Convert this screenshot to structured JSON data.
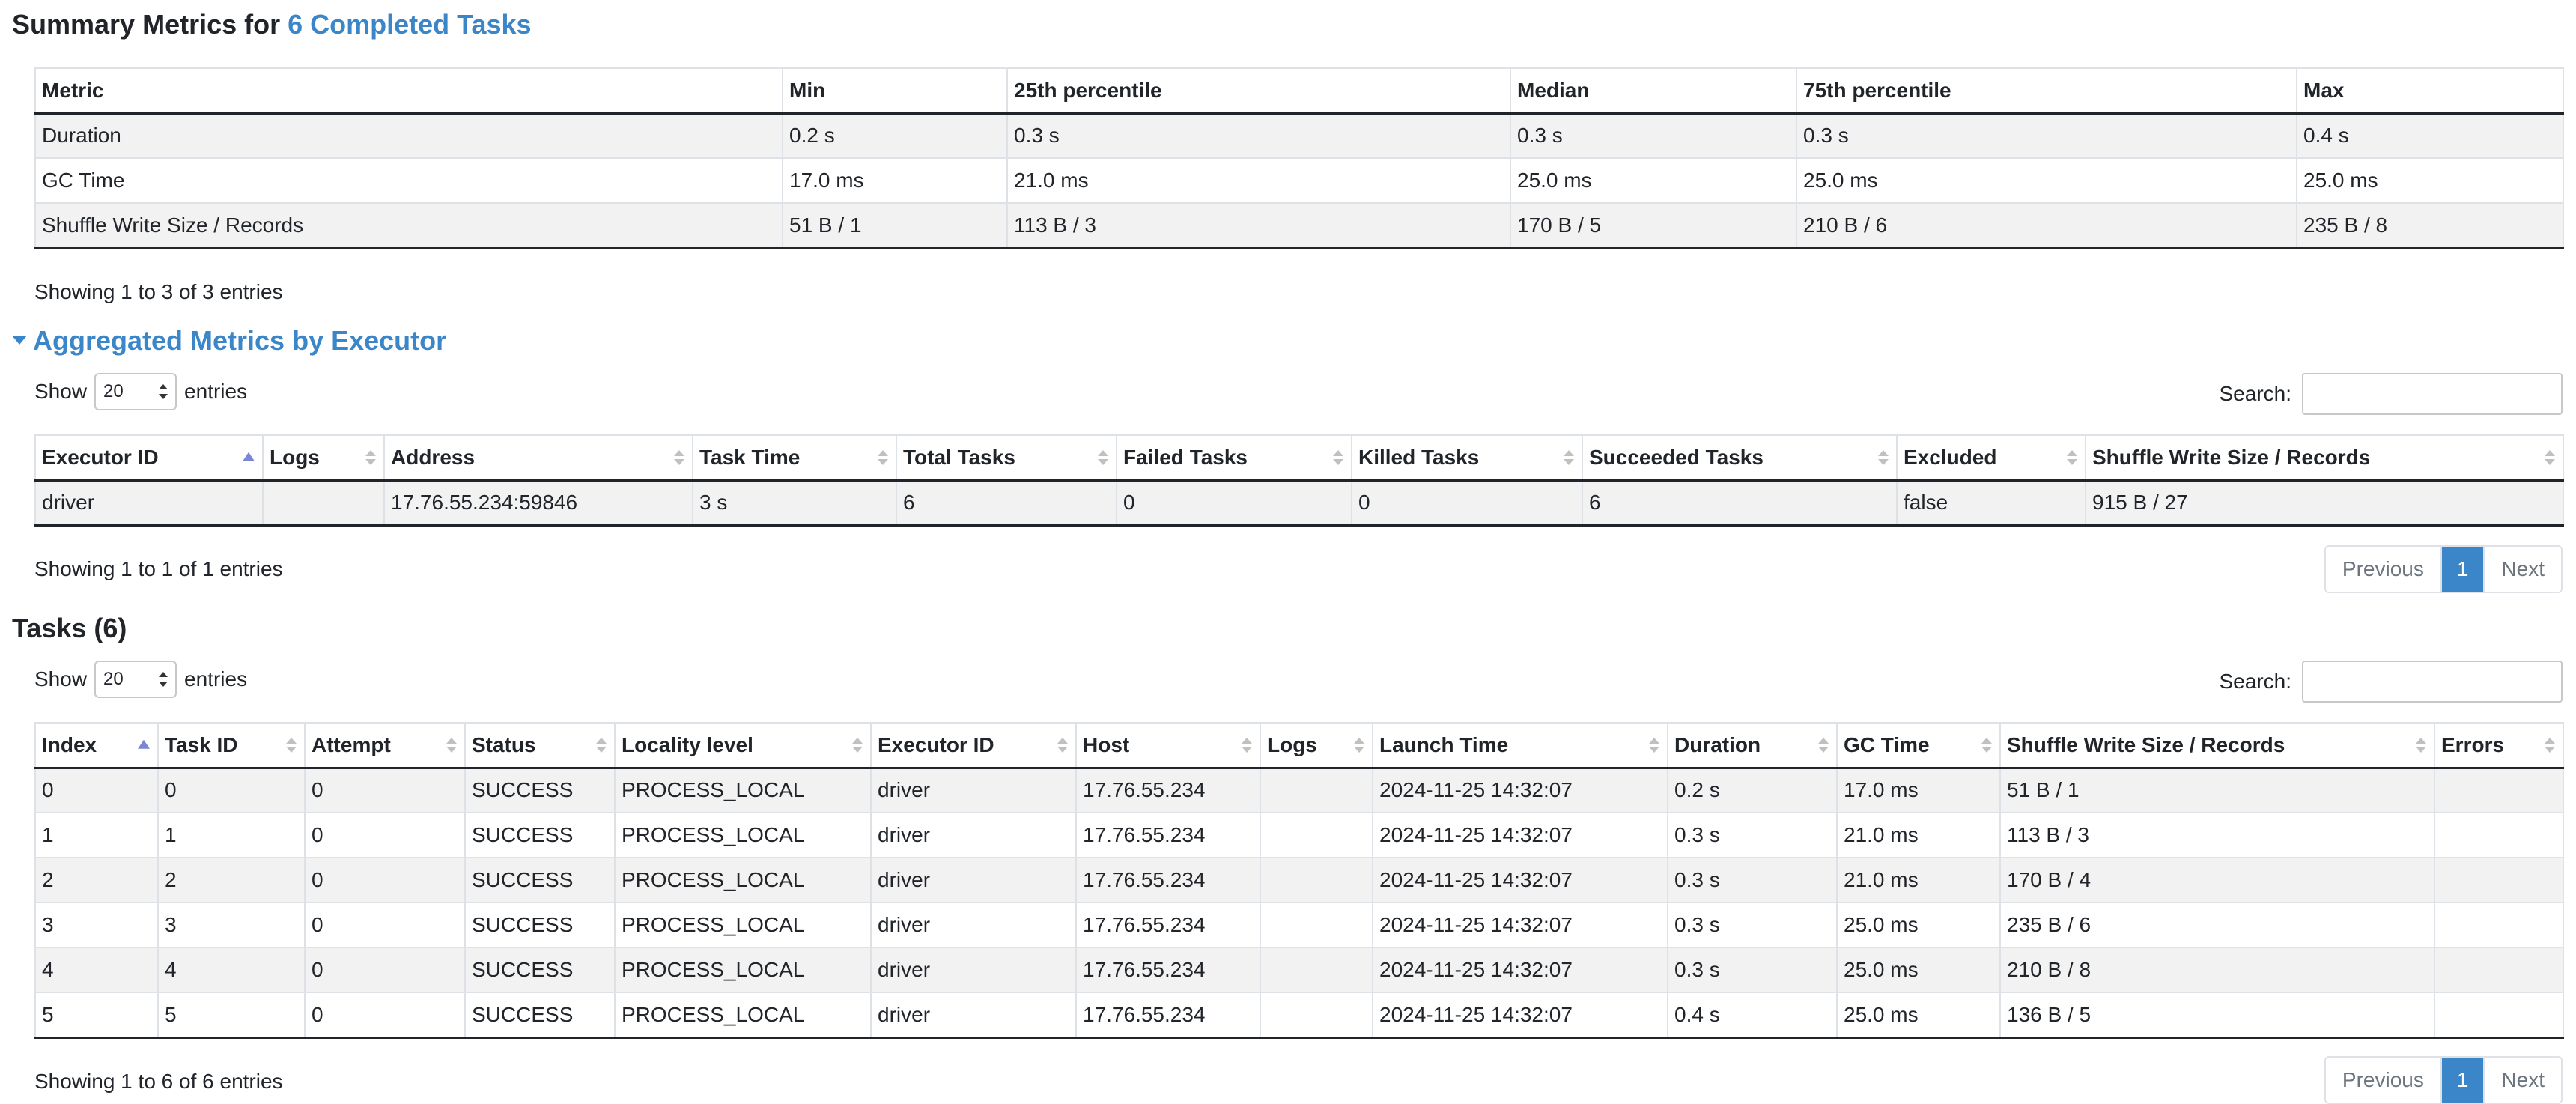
{
  "summary": {
    "title_prefix": "Summary Metrics for",
    "title_link": "6 Completed Tasks",
    "headers": [
      "Metric",
      "Min",
      "25th percentile",
      "Median",
      "75th percentile",
      "Max"
    ],
    "rows": [
      [
        "Duration",
        "0.2 s",
        "0.3 s",
        "0.3 s",
        "0.3 s",
        "0.4 s"
      ],
      [
        "GC Time",
        "17.0 ms",
        "21.0 ms",
        "25.0 ms",
        "25.0 ms",
        "25.0 ms"
      ],
      [
        "Shuffle Write Size / Records",
        "51 B / 1",
        "113 B / 3",
        "170 B / 5",
        "210 B / 6",
        "235 B / 8"
      ]
    ],
    "info": "Showing 1 to 3 of 3 entries"
  },
  "executors": {
    "title": "Aggregated Metrics by Executor",
    "show_label": "Show",
    "entries_label": "entries",
    "page_size": "20",
    "search_label": "Search:",
    "search_value": "",
    "headers": [
      "Executor ID",
      "Logs",
      "Address",
      "Task Time",
      "Total Tasks",
      "Failed Tasks",
      "Killed Tasks",
      "Succeeded Tasks",
      "Excluded",
      "Shuffle Write Size / Records"
    ],
    "rows": [
      [
        "driver",
        "",
        "17.76.55.234:59846",
        "3 s",
        "6",
        "0",
        "0",
        "6",
        "false",
        "915 B / 27"
      ]
    ],
    "info": "Showing 1 to 1 of 1 entries",
    "pagination": {
      "previous": "Previous",
      "page": "1",
      "next": "Next"
    }
  },
  "tasks": {
    "title": "Tasks (6)",
    "show_label": "Show",
    "entries_label": "entries",
    "page_size": "20",
    "search_label": "Search:",
    "search_value": "",
    "headers": [
      "Index",
      "Task ID",
      "Attempt",
      "Status",
      "Locality level",
      "Executor ID",
      "Host",
      "Logs",
      "Launch Time",
      "Duration",
      "GC Time",
      "Shuffle Write Size / Records",
      "Errors"
    ],
    "rows": [
      [
        "0",
        "0",
        "0",
        "SUCCESS",
        "PROCESS_LOCAL",
        "driver",
        "17.76.55.234",
        "",
        "2024-11-25 14:32:07",
        "0.2 s",
        "17.0 ms",
        "51 B / 1",
        ""
      ],
      [
        "1",
        "1",
        "0",
        "SUCCESS",
        "PROCESS_LOCAL",
        "driver",
        "17.76.55.234",
        "",
        "2024-11-25 14:32:07",
        "0.3 s",
        "21.0 ms",
        "113 B / 3",
        ""
      ],
      [
        "2",
        "2",
        "0",
        "SUCCESS",
        "PROCESS_LOCAL",
        "driver",
        "17.76.55.234",
        "",
        "2024-11-25 14:32:07",
        "0.3 s",
        "21.0 ms",
        "170 B / 4",
        ""
      ],
      [
        "3",
        "3",
        "0",
        "SUCCESS",
        "PROCESS_LOCAL",
        "driver",
        "17.76.55.234",
        "",
        "2024-11-25 14:32:07",
        "0.3 s",
        "25.0 ms",
        "235 B / 6",
        ""
      ],
      [
        "4",
        "4",
        "0",
        "SUCCESS",
        "PROCESS_LOCAL",
        "driver",
        "17.76.55.234",
        "",
        "2024-11-25 14:32:07",
        "0.3 s",
        "25.0 ms",
        "210 B / 8",
        ""
      ],
      [
        "5",
        "5",
        "0",
        "SUCCESS",
        "PROCESS_LOCAL",
        "driver",
        "17.76.55.234",
        "",
        "2024-11-25 14:32:07",
        "0.4 s",
        "25.0 ms",
        "136 B / 5",
        ""
      ]
    ],
    "info": "Showing 1 to 6 of 6 entries",
    "pagination": {
      "previous": "Previous",
      "page": "1",
      "next": "Next"
    }
  },
  "colors": {
    "link": "#3b86c8",
    "striped_row": "#f2f2f2",
    "active_page": "#3b86c8",
    "sort_active": "#7b86d6"
  }
}
